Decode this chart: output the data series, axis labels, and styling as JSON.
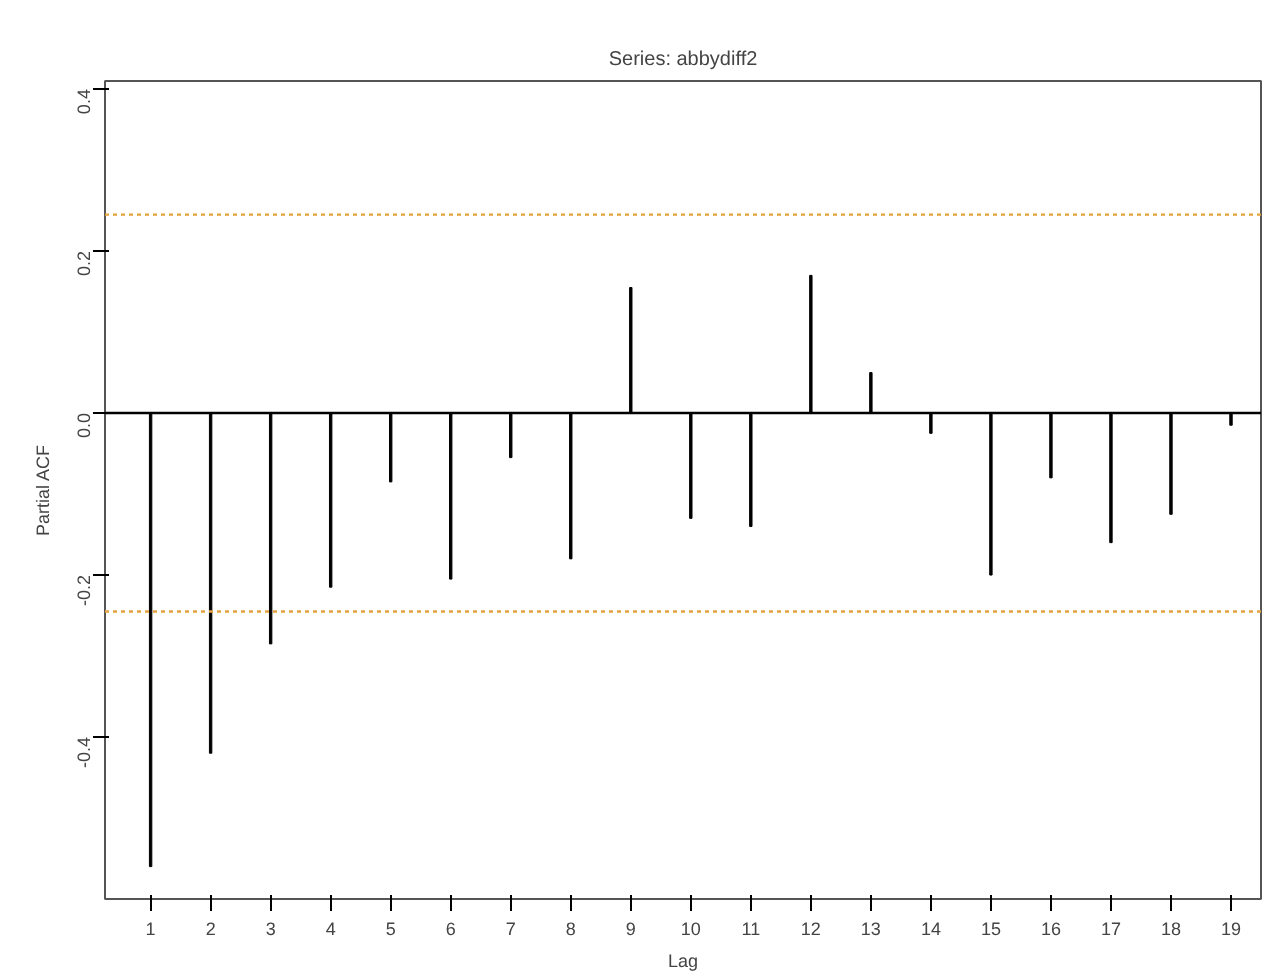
{
  "chart_data": {
    "type": "bar",
    "title": "Series: abbydiff2",
    "xlabel": "Lag",
    "ylabel": "Partial ACF",
    "x": [
      1,
      2,
      3,
      4,
      5,
      6,
      7,
      8,
      9,
      10,
      11,
      12,
      13,
      14,
      15,
      16,
      17,
      18,
      19
    ],
    "values": [
      -0.56,
      -0.42,
      -0.285,
      -0.215,
      -0.085,
      -0.205,
      -0.055,
      -0.18,
      0.155,
      -0.13,
      -0.14,
      0.17,
      0.05,
      -0.025,
      -0.2,
      -0.08,
      -0.16,
      -0.125,
      -0.015
    ],
    "color": "#000000",
    "xlim": [
      0.24,
      19.5
    ],
    "ylim": [
      -0.6,
      0.41
    ],
    "xticks": [
      1,
      2,
      3,
      4,
      5,
      6,
      7,
      8,
      9,
      10,
      11,
      12,
      13,
      14,
      15,
      16,
      17,
      18,
      19
    ],
    "yticks": [
      {
        "value": -0.4,
        "label": "-0.4"
      },
      {
        "value": -0.2,
        "label": "-0.2"
      },
      {
        "value": 0.0,
        "label": "0.0"
      },
      {
        "value": 0.2,
        "label": "0.2"
      },
      {
        "value": 0.4,
        "label": "0.4"
      }
    ],
    "ref_lines": [
      {
        "axis": "y",
        "value": 0,
        "label": null,
        "color": "#000000",
        "line_style": "solid"
      },
      {
        "axis": "y",
        "value": 0.245,
        "label": null,
        "color": "#e6a23c",
        "line_style": "dashed"
      },
      {
        "axis": "y",
        "value": -0.245,
        "label": null,
        "color": "#e6a23c",
        "line_style": "dashed"
      }
    ]
  }
}
